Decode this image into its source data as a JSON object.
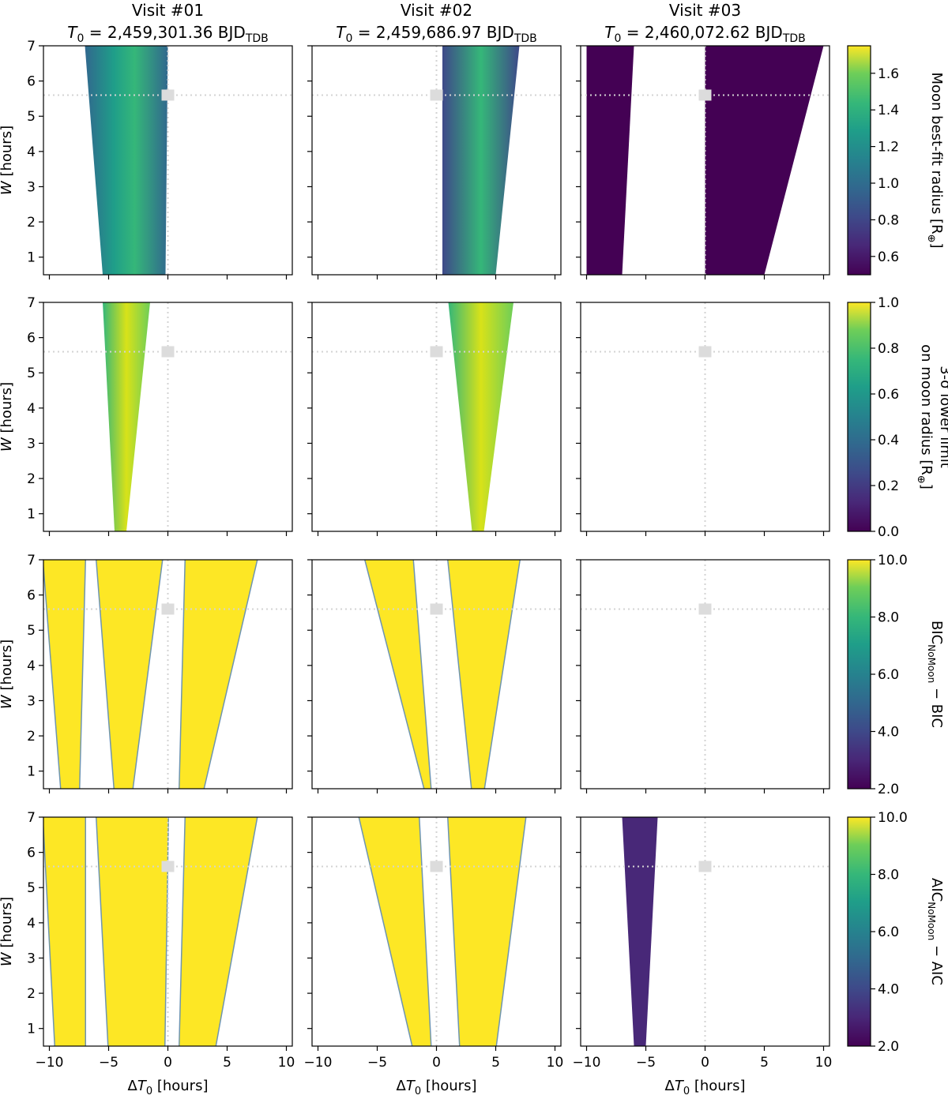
{
  "figure": {
    "visits": [
      {
        "title": "Visit #01",
        "t0_prefix": "T",
        "t0_sub": "0",
        "t0_value": " = 2,459,301.36 BJD",
        "t0_unit_sub": "TDB"
      },
      {
        "title": "Visit #02",
        "t0_prefix": "T",
        "t0_sub": "0",
        "t0_value": " = 2,459,686.97 BJD",
        "t0_unit_sub": "TDB"
      },
      {
        "title": "Visit #03",
        "t0_prefix": "T",
        "t0_sub": "0",
        "t0_value": " = 2,460,072.62 BJD",
        "t0_unit_sub": "TDB"
      }
    ],
    "xlabel": {
      "prefix": "ΔT",
      "sub": "0",
      "suffix": " [hours]"
    },
    "ylabel": {
      "prefix": "W",
      "suffix": " [hours]"
    },
    "colormap": "viridis",
    "colors": {
      "viridis_low": "#440154",
      "viridis_mid": "#21918c",
      "viridis_high": "#fde725",
      "reference_line": "#d3d3d3",
      "reference_marker": "#dcdcdc"
    },
    "reference_point": {
      "delta_t0": 0,
      "w": 5.6
    },
    "rows": [
      {
        "colorbar_label_lines": [
          "Moon best-fit radius [R",
          "⊕",
          "]"
        ],
        "colorbar_ticks": [
          "0.6",
          "0.8",
          "1.0",
          "1.2",
          "1.4",
          "1.6"
        ],
        "colorbar_range": [
          0.5,
          1.75
        ]
      },
      {
        "colorbar_label_lines": [
          "3-σ lower limit",
          "on moon radius [R",
          "⊕",
          "]"
        ],
        "colorbar_ticks": [
          "0.0",
          "0.2",
          "0.4",
          "0.6",
          "0.8",
          "1.0"
        ],
        "colorbar_range": [
          0.0,
          1.0
        ]
      },
      {
        "colorbar_label": {
          "main": "BIC",
          "sub": "NoMoon",
          "tail": " − BIC"
        },
        "colorbar_ticks": [
          "2.0",
          "4.0",
          "6.0",
          "8.0",
          "10.0"
        ],
        "colorbar_range": [
          2.0,
          10.0
        ]
      },
      {
        "colorbar_label": {
          "main": "AIC",
          "sub": "NoMoon",
          "tail": " − AIC"
        },
        "colorbar_ticks": [
          "2.0",
          "4.0",
          "6.0",
          "8.0",
          "10.0"
        ],
        "colorbar_range": [
          2.0,
          10.0
        ]
      }
    ]
  },
  "chart_data": {
    "type": "heatmap",
    "layout": "4 rows × 3 columns of heatmaps sharing axes; each row has its own colorbar on the right",
    "x_axis": {
      "label": "ΔT0 [hours]",
      "range": [
        -10.5,
        10.5
      ],
      "ticks": [
        "−10",
        "−5",
        "0",
        "5",
        "10"
      ]
    },
    "y_axis": {
      "label": "W [hours]",
      "range": [
        0.5,
        7
      ],
      "ticks": [
        "1",
        "2",
        "3",
        "4",
        "5",
        "6",
        "7"
      ]
    },
    "reference_lines": {
      "delta_t0": 0,
      "w": 5.6,
      "style": "dotted light grey",
      "marker": "grey square"
    },
    "panels": [
      {
        "row": 1,
        "visit": "Visit #01",
        "quantity": "moon best-fit radius",
        "regions": [
          {
            "x_at_w_low": [
              -5.5,
              -0.2
            ],
            "x_at_w_high": [
              -7,
              0
            ],
            "value": 1.2
          }
        ]
      },
      {
        "row": 1,
        "visit": "Visit #02",
        "quantity": "moon best-fit radius",
        "regions": [
          {
            "x_at_w_low": [
              0.5,
              5
            ],
            "x_at_w_high": [
              0.5,
              7
            ],
            "value": 1.1
          }
        ]
      },
      {
        "row": 1,
        "visit": "Visit #03",
        "quantity": "moon best-fit radius",
        "regions": [
          {
            "x_at_w_low": [
              -10,
              -7
            ],
            "x_at_w_high": [
              -10,
              -6
            ],
            "value": 0.55
          },
          {
            "x_at_w_low": [
              0,
              5
            ],
            "x_at_w_high": [
              0,
              10
            ],
            "value": 0.55
          }
        ]
      },
      {
        "row": 2,
        "visit": "Visit #01",
        "quantity": "3-sigma lower limit on moon radius",
        "regions": [
          {
            "x_at_w_low": [
              -4.5,
              -3.5
            ],
            "x_at_w_high": [
              -5.5,
              -1.5
            ],
            "value": 0.85
          }
        ]
      },
      {
        "row": 2,
        "visit": "Visit #02",
        "quantity": "3-sigma lower limit on moon radius",
        "regions": [
          {
            "x_at_w_low": [
              3,
              4
            ],
            "x_at_w_high": [
              1,
              6.5
            ],
            "value": 0.85
          }
        ]
      },
      {
        "row": 2,
        "visit": "Visit #03",
        "quantity": "3-sigma lower limit on moon radius",
        "regions": []
      },
      {
        "row": 3,
        "visit": "Visit #01",
        "quantity": "BIC_NoMoon − BIC",
        "regions": [
          {
            "x_at_w_low": [
              -9,
              -7.5
            ],
            "x_at_w_high": [
              -10.5,
              -7
            ],
            "value": 10
          },
          {
            "x_at_w_low": [
              -4.5,
              -3
            ],
            "x_at_w_high": [
              -6,
              -0.5
            ],
            "value": 10
          },
          {
            "x_at_w_low": [
              1,
              3
            ],
            "x_at_w_high": [
              1.5,
              7.5
            ],
            "value": 10
          }
        ]
      },
      {
        "row": 3,
        "visit": "Visit #02",
        "quantity": "BIC_NoMoon − BIC",
        "regions": [
          {
            "x_at_w_low": [
              -1,
              -0.5
            ],
            "x_at_w_high": [
              -6,
              -2
            ],
            "value": 10
          },
          {
            "x_at_w_low": [
              3,
              4
            ],
            "x_at_w_high": [
              1,
              7
            ],
            "value": 10
          }
        ]
      },
      {
        "row": 3,
        "visit": "Visit #03",
        "quantity": "BIC_NoMoon − BIC",
        "regions": []
      },
      {
        "row": 4,
        "visit": "Visit #01",
        "quantity": "AIC_NoMoon − AIC",
        "regions": [
          {
            "x_at_w_low": [
              -9.5,
              -7
            ],
            "x_at_w_high": [
              -10.5,
              -7
            ],
            "value": 10
          },
          {
            "x_at_w_low": [
              -5,
              -0.3
            ],
            "x_at_w_high": [
              -6,
              0
            ],
            "value": 10
          },
          {
            "x_at_w_low": [
              1,
              4
            ],
            "x_at_w_high": [
              1.5,
              7.5
            ],
            "value": 10
          }
        ]
      },
      {
        "row": 4,
        "visit": "Visit #02",
        "quantity": "AIC_NoMoon − AIC",
        "regions": [
          {
            "x_at_w_low": [
              -2,
              -0.5
            ],
            "x_at_w_high": [
              -6.5,
              -1.5
            ],
            "value": 10
          },
          {
            "x_at_w_low": [
              2,
              5
            ],
            "x_at_w_high": [
              1,
              7.5
            ],
            "value": 10
          }
        ]
      },
      {
        "row": 4,
        "visit": "Visit #03",
        "quantity": "AIC_NoMoon − AIC",
        "regions": [
          {
            "x_at_w_low": [
              -6,
              -5
            ],
            "x_at_w_high": [
              -7,
              -4
            ],
            "value": 3
          }
        ]
      }
    ]
  }
}
